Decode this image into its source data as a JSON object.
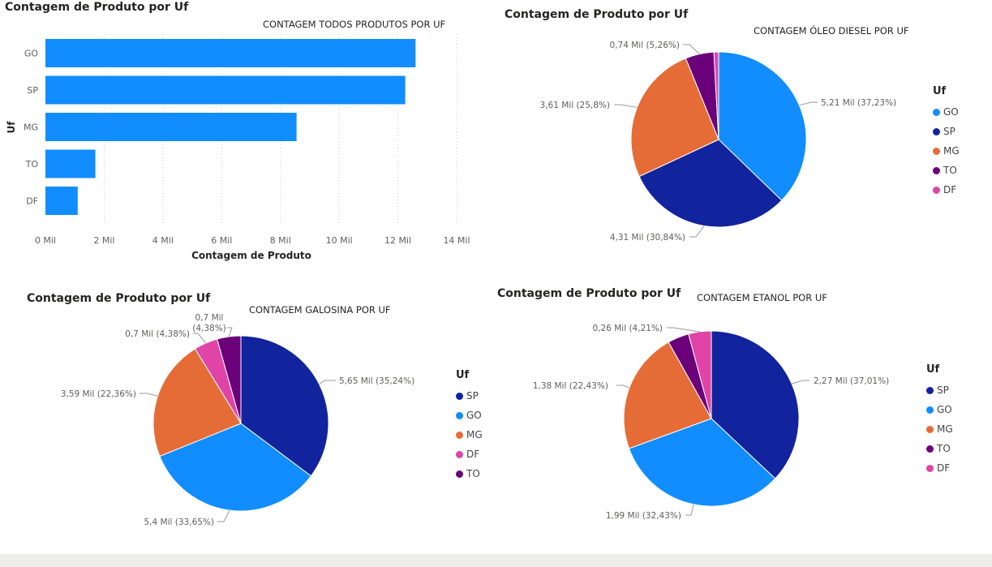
{
  "chart_data": [
    {
      "type": "bar",
      "title": "Contagem de Produto por Uf",
      "subtitle": "CONTAGEM TODOS PRODUTOS POR UF",
      "xlabel": "Contagem de Produto",
      "ylabel": "Uf",
      "categories": [
        "GO",
        "SP",
        "MG",
        "TO",
        "DF"
      ],
      "values": [
        12.6,
        12.25,
        8.55,
        1.7,
        1.1
      ],
      "xlim": [
        0,
        14
      ],
      "xticks": [
        0,
        2,
        4,
        6,
        8,
        10,
        12,
        14
      ],
      "xtick_labels": [
        "0 Mil",
        "2 Mil",
        "4 Mil",
        "6 Mil",
        "8 Mil",
        "10 Mil",
        "12 Mil",
        "14 Mil"
      ],
      "color": "#118DFF",
      "grid": "vertical-dashed"
    },
    {
      "type": "pie",
      "title": "Contagem de Produto por Uf",
      "subtitle": "CONTAGEM ÓLEO DIESEL POR UF",
      "legend_title": "Uf",
      "legend_position": "right",
      "slices": [
        {
          "name": "GO",
          "value": 37.23,
          "label": "5,21 Mil (37,23%)",
          "color": "#118DFF"
        },
        {
          "name": "SP",
          "value": 30.84,
          "label": "4,31 Mil (30,84%)",
          "color": "#12239E"
        },
        {
          "name": "MG",
          "value": 25.8,
          "label": "3,61 Mil (25,8%)",
          "color": "#E66C37"
        },
        {
          "name": "TO",
          "value": 5.26,
          "label": "0,74 Mil (5,26%)",
          "color": "#6B007B"
        },
        {
          "name": "DF",
          "value": 0.87,
          "label": "",
          "color": "#E044A7"
        }
      ]
    },
    {
      "type": "pie",
      "title": "Contagem de Produto por Uf",
      "subtitle": "CONTAGEM  GALOSINA POR UF",
      "legend_title": "Uf",
      "legend_position": "right",
      "slices": [
        {
          "name": "SP",
          "value": 35.24,
          "label": "5,65 Mil (35,24%)",
          "color": "#12239E"
        },
        {
          "name": "GO",
          "value": 33.65,
          "label": "5,4 Mil (33,65%)",
          "color": "#118DFF"
        },
        {
          "name": "MG",
          "value": 22.36,
          "label": "3,59 Mil (22,36%)",
          "color": "#E66C37"
        },
        {
          "name": "DF",
          "value": 4.38,
          "label": "0,7 Mil (4,38%)",
          "color": "#E044A7"
        },
        {
          "name": "TO",
          "value": 4.38,
          "label": "0,7 Mil (4,38%)",
          "color": "#6B007B"
        }
      ]
    },
    {
      "type": "pie",
      "title": "Contagem de Produto por Uf",
      "subtitle": "CONTAGEM  ETANOL POR UF",
      "legend_title": "Uf",
      "legend_position": "right",
      "slices": [
        {
          "name": "SP",
          "value": 37.01,
          "label": "2,27 Mil (37,01%)",
          "color": "#12239E"
        },
        {
          "name": "GO",
          "value": 32.43,
          "label": "1,99 Mil (32,43%)",
          "color": "#118DFF"
        },
        {
          "name": "MG",
          "value": 22.43,
          "label": "1,38 Mil (22,43%)",
          "color": "#E66C37"
        },
        {
          "name": "TO",
          "value": 3.92,
          "label": "",
          "color": "#6B007B"
        },
        {
          "name": "DF",
          "value": 4.21,
          "label": "0,26 Mil (4,21%)",
          "color": "#E044A7"
        }
      ]
    }
  ]
}
